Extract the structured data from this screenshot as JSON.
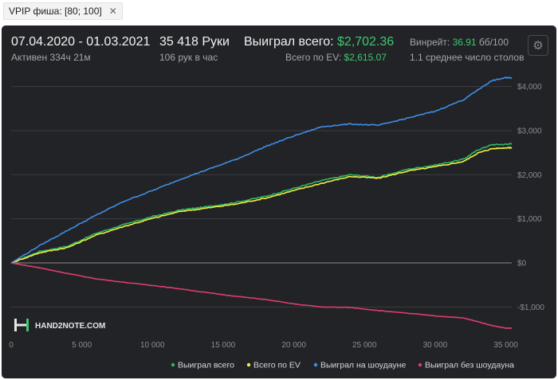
{
  "tab": {
    "label": "VPIP фиша: [80; 100]",
    "close": "✕"
  },
  "header": {
    "date_range": "07.04.2020 - 01.03.2021",
    "active": "Активен 334ч 21м",
    "hands": "35 418 Руки",
    "hands_per_hour": "106 рук в час",
    "won_label": "Выиграл всего: ",
    "won_value": "$2,702.36",
    "ev_label": "Всего по EV: ",
    "ev_value": "$2,615.07",
    "winrate_label": "Винрейт: ",
    "winrate_value": "36.91",
    "winrate_suffix": " бб/100",
    "tables": "1.1 среднее число столов",
    "settings_icon": "gear-icon"
  },
  "logo": {
    "text": "HAND2NOTE.COM"
  },
  "chart_data": {
    "type": "line",
    "xlim": [
      0,
      35418
    ],
    "ylim": [
      -1300,
      4300
    ],
    "x_ticks": [
      0,
      5000,
      10000,
      15000,
      20000,
      25000,
      30000,
      35000
    ],
    "x_tick_labels": [
      "0",
      "5 000",
      "10 000",
      "15 000",
      "20 000",
      "25 000",
      "30 000",
      "35 000"
    ],
    "y_ticks": [
      -1000,
      0,
      1000,
      2000,
      3000,
      4000
    ],
    "y_tick_labels": [
      "-$1,000",
      "$0",
      "$1,000",
      "$2,000",
      "$3,000",
      "$4,000"
    ],
    "grid": "horizontal",
    "legend_position": "bottom-right",
    "x": [
      0,
      2000,
      4000,
      6000,
      8000,
      10000,
      12000,
      14000,
      16000,
      18000,
      20000,
      22000,
      24000,
      26000,
      28000,
      30000,
      32000,
      33000,
      34000,
      35000,
      35418
    ],
    "series": [
      {
        "name": "Выиграл всего",
        "color": "#2fb862",
        "values": [
          0,
          260,
          380,
          670,
          870,
          1050,
          1200,
          1280,
          1380,
          1510,
          1690,
          1870,
          2000,
          1940,
          2120,
          2220,
          2350,
          2560,
          2680,
          2690,
          2702
        ]
      },
      {
        "name": "Всего по EV",
        "color": "#f0ee44",
        "values": [
          0,
          230,
          350,
          630,
          830,
          1010,
          1170,
          1250,
          1340,
          1470,
          1640,
          1810,
          1960,
          1920,
          2080,
          2180,
          2300,
          2490,
          2590,
          2610,
          2615
        ]
      },
      {
        "name": "Выиграл на шоудауне",
        "color": "#3f8fe6",
        "values": [
          0,
          390,
          740,
          1080,
          1400,
          1640,
          1900,
          2130,
          2360,
          2640,
          2880,
          3090,
          3150,
          3120,
          3280,
          3440,
          3700,
          3920,
          4130,
          4200,
          4200
        ]
      },
      {
        "name": "Выиграл без шоудауна",
        "color": "#de3d6b",
        "values": [
          0,
          -110,
          -240,
          -360,
          -440,
          -510,
          -590,
          -680,
          -760,
          -830,
          -930,
          -1000,
          -1010,
          -1080,
          -1140,
          -1200,
          -1250,
          -1330,
          -1420,
          -1480,
          -1480
        ]
      }
    ]
  }
}
